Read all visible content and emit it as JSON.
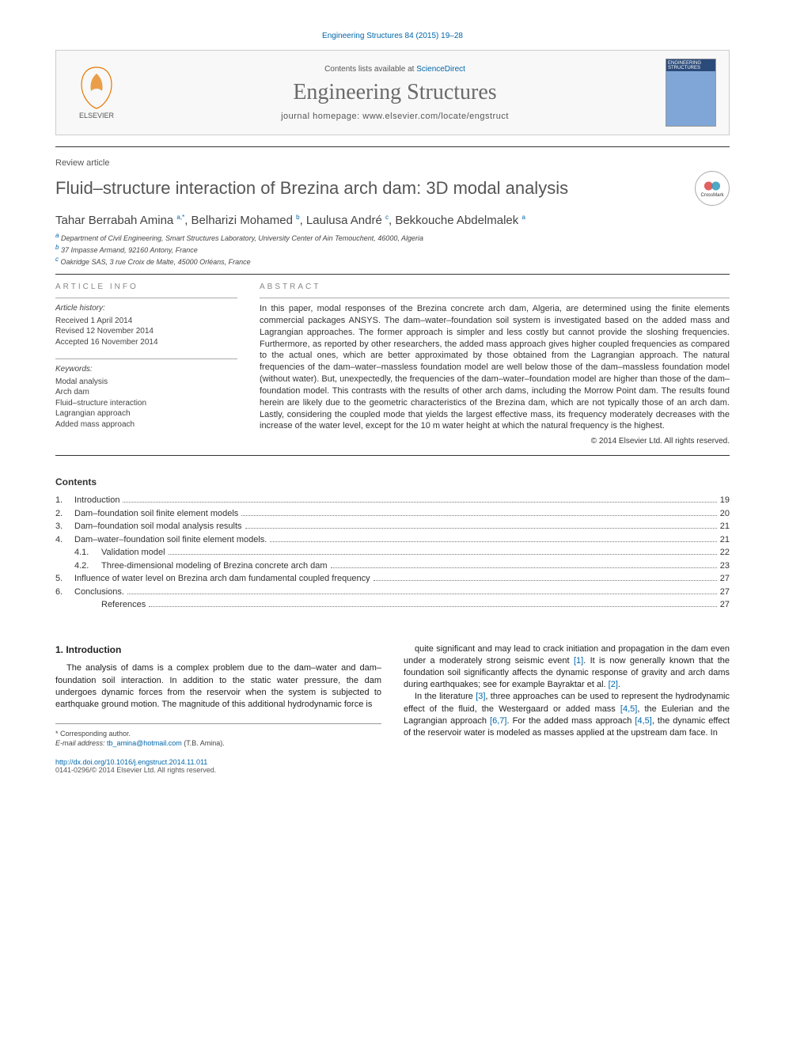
{
  "citation_top": "Engineering Structures 84 (2015) 19–28",
  "header": {
    "contents_prefix": "Contents lists available at ",
    "contents_link": "ScienceDirect",
    "journal": "Engineering Structures",
    "homepage_label": "journal homepage: www.elsevier.com/locate/engstruct",
    "elsevier_label": "ELSEVIER",
    "cover_text": "ENGINEERING STRUCTURES"
  },
  "article": {
    "type": "Review article",
    "title": "Fluid–structure interaction of Brezina arch dam: 3D modal analysis",
    "crossmark": "CrossMark",
    "authors_html": "Tahar Berrabah Amina <sup>a,*</sup>, Belharizi Mohamed <sup>b</sup>, Laulusa André <sup>c</sup>, Bekkouche Abdelmalek <sup>a</sup>",
    "affils": [
      "Department of Civil Engineering, Smart Structures Laboratory, University Center of Ain Temouchent, 46000, Algeria",
      "37 Impasse Armand, 92160 Antony, France",
      "Oakridge SAS, 3 rue Croix de Malte, 45000 Orléans, France"
    ],
    "affil_markers": [
      "a",
      "b",
      "c"
    ]
  },
  "info": {
    "head": "ARTICLE INFO",
    "history_label": "Article history:",
    "history": [
      "Received 1 April 2014",
      "Revised 12 November 2014",
      "Accepted 16 November 2014"
    ],
    "keywords_label": "Keywords:",
    "keywords": [
      "Modal analysis",
      "Arch dam",
      "Fluid–structure interaction",
      "Lagrangian approach",
      "Added mass approach"
    ]
  },
  "abstract": {
    "head": "ABSTRACT",
    "text": "In this paper, modal responses of the Brezina concrete arch dam, Algeria, are determined using the finite elements commercial packages ANSYS. The dam–water–foundation soil system is investigated based on the added mass and Lagrangian approaches. The former approach is simpler and less costly but cannot provide the sloshing frequencies. Furthermore, as reported by other researchers, the added mass approach gives higher coupled frequencies as compared to the actual ones, which are better approximated by those obtained from the Lagrangian approach. The natural frequencies of the dam–water–massless foundation model are well below those of the dam–massless foundation model (without water). But, unexpectedly, the frequencies of the dam–water–foundation model are higher than those of the dam–foundation model. This contrasts with the results of other arch dams, including the Morrow Point dam. The results found herein are likely due to the geometric characteristics of the Brezina dam, which are not typically those of an arch dam. Lastly, considering the coupled mode that yields the largest effective mass, its frequency moderately decreases with the increase of the water level, except for the 10 m water height at which the natural frequency is the highest.",
    "copyright": "© 2014 Elsevier Ltd. All rights reserved."
  },
  "contents": {
    "title": "Contents",
    "items": [
      {
        "num": "1.",
        "label": "Introduction",
        "page": "19",
        "indent": 0
      },
      {
        "num": "2.",
        "label": "Dam–foundation soil finite element models",
        "page": "20",
        "indent": 0
      },
      {
        "num": "3.",
        "label": "Dam–foundation soil modal analysis results",
        "page": "21",
        "indent": 0
      },
      {
        "num": "4.",
        "label": "Dam–water–foundation soil finite element models.",
        "page": "21",
        "indent": 0
      },
      {
        "num": "4.1.",
        "label": "Validation model",
        "page": "22",
        "indent": 1
      },
      {
        "num": "4.2.",
        "label": "Three-dimensional modeling of Brezina concrete arch dam",
        "page": "23",
        "indent": 1
      },
      {
        "num": "5.",
        "label": "Influence of water level on Brezina arch dam fundamental coupled frequency",
        "page": "27",
        "indent": 0
      },
      {
        "num": "6.",
        "label": "Conclusions.",
        "page": "27",
        "indent": 0
      },
      {
        "num": "",
        "label": "References",
        "page": "27",
        "indent": 1
      }
    ]
  },
  "body": {
    "section1_head": "1. Introduction",
    "left_p1": "The analysis of dams is a complex problem due to the dam–water and dam–foundation soil interaction. In addition to the static water pressure, the dam undergoes dynamic forces from the reservoir when the system is subjected to earthquake ground motion. The magnitude of this additional hydrodynamic force is",
    "right_p1": "quite significant and may lead to crack initiation and propagation in the dam even under a moderately strong seismic event [1]. It is now generally known that the foundation soil significantly affects the dynamic response of gravity and arch dams during earthquakes; see for example Bayraktar et al. [2].",
    "right_p2": "In the literature [3], three approaches can be used to represent the hydrodynamic effect of the fluid, the Westergaard or added mass [4,5], the Eulerian and the Lagrangian approach [6,7]. For the added mass approach [4,5], the dynamic effect of the reservoir water is modeled as masses applied at the upstream dam face. In",
    "refs": {
      "r1": "[1]",
      "r2": "[2]",
      "r3": "[3]",
      "r45a": "[4,5]",
      "r67": "[6,7]",
      "r45b": "[4,5]"
    }
  },
  "footer": {
    "corr_marker": "* Corresponding author.",
    "email_label": "E-mail address:",
    "email": "tb_amina@hotmail.com",
    "email_tail": " (T.B. Amina).",
    "doi": "http://dx.doi.org/10.1016/j.engstruct.2014.11.011",
    "pubinfo": "0141-0296/© 2014 Elsevier Ltd. All rights reserved."
  },
  "colors": {
    "link": "#0066aa",
    "title_gray": "#555555",
    "journal_gray": "#6a6a6a",
    "elsevier_orange": "#e67700"
  }
}
